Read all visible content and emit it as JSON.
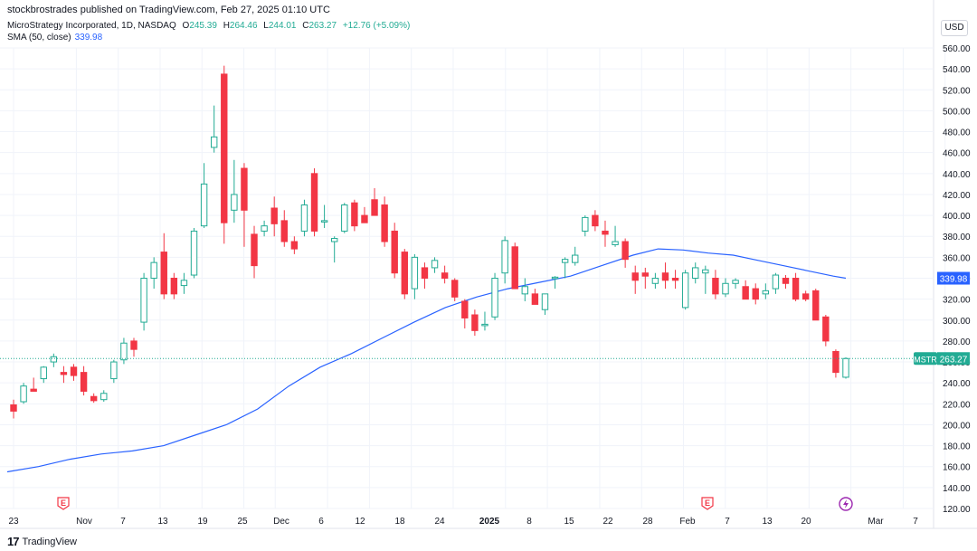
{
  "header": {
    "published_line": "stockbrostrades published on TradingView.com, Feb 27, 2025 01:10 UTC",
    "symbol_line": "MicroStrategy Incorporated, 1D, NASDAQ",
    "ohlc": {
      "o_label": "O",
      "o": "245.39",
      "h_label": "H",
      "h": "264.46",
      "l_label": "L",
      "l": "244.01",
      "c_label": "C",
      "c": "263.27",
      "chg": "+12.76 (+5.09%)"
    },
    "sma_label": "SMA (50, close)",
    "sma_value": "339.98",
    "currency": "USD"
  },
  "footer": {
    "brand": "TradingView"
  },
  "colors": {
    "up": "#22ab94",
    "down": "#f23645",
    "sma": "#2962ff",
    "grid": "#f0f3fa",
    "text": "#131722"
  },
  "chart_data": {
    "type": "candlestick",
    "title": "MicroStrategy Incorporated, 1D, NASDAQ",
    "ylim": [
      120,
      560
    ],
    "y_ticks": [
      120,
      140,
      160,
      180,
      200,
      220,
      240,
      260,
      280,
      300,
      320,
      340,
      360,
      380,
      400,
      420,
      440,
      460,
      480,
      500,
      520,
      540,
      560
    ],
    "x_tick_labels": [
      {
        "label": "23",
        "date": "2024-10-23"
      },
      {
        "label": "Nov",
        "date": "2024-11-01"
      },
      {
        "label": "7",
        "date": "2024-11-07"
      },
      {
        "label": "13",
        "date": "2024-11-13"
      },
      {
        "label": "19",
        "date": "2024-11-19"
      },
      {
        "label": "25",
        "date": "2024-11-25"
      },
      {
        "label": "Dec",
        "date": "2024-12-02"
      },
      {
        "label": "6",
        "date": "2024-12-06"
      },
      {
        "label": "12",
        "date": "2024-12-12"
      },
      {
        "label": "18",
        "date": "2024-12-18"
      },
      {
        "label": "24",
        "date": "2024-12-24"
      },
      {
        "label": "2025",
        "date": "2025-01-02"
      },
      {
        "label": "8",
        "date": "2025-01-08"
      },
      {
        "label": "15",
        "date": "2025-01-15"
      },
      {
        "label": "22",
        "date": "2025-01-22"
      },
      {
        "label": "28",
        "date": "2025-01-28"
      },
      {
        "label": "Feb",
        "date": "2025-02-03"
      },
      {
        "label": "7",
        "date": "2025-02-07"
      },
      {
        "label": "13",
        "date": "2025-02-13"
      },
      {
        "label": "20",
        "date": "2025-02-20"
      },
      {
        "label": "Mar",
        "date": "2025-03-03"
      },
      {
        "label": "7",
        "date": "2025-03-07"
      }
    ],
    "candles": [
      {
        "o": 219,
        "h": 224,
        "l": 206,
        "c": 213
      },
      {
        "o": 222,
        "h": 240,
        "l": 220,
        "c": 237
      },
      {
        "o": 234,
        "h": 245,
        "l": 232,
        "c": 232
      },
      {
        "o": 244,
        "h": 256,
        "l": 240,
        "c": 255
      },
      {
        "o": 260,
        "h": 268,
        "l": 255,
        "c": 265
      },
      {
        "o": 250,
        "h": 256,
        "l": 240,
        "c": 248
      },
      {
        "o": 255,
        "h": 258,
        "l": 242,
        "c": 247
      },
      {
        "o": 250,
        "h": 256,
        "l": 228,
        "c": 232
      },
      {
        "o": 227,
        "h": 230,
        "l": 221,
        "c": 223
      },
      {
        "o": 224,
        "h": 233,
        "l": 222,
        "c": 230
      },
      {
        "o": 244,
        "h": 262,
        "l": 240,
        "c": 260
      },
      {
        "o": 262,
        "h": 283,
        "l": 258,
        "c": 278
      },
      {
        "o": 280,
        "h": 283,
        "l": 265,
        "c": 272
      },
      {
        "o": 298,
        "h": 345,
        "l": 290,
        "c": 340
      },
      {
        "o": 340,
        "h": 360,
        "l": 330,
        "c": 355
      },
      {
        "o": 365,
        "h": 383,
        "l": 320,
        "c": 325
      },
      {
        "o": 340,
        "h": 345,
        "l": 320,
        "c": 325
      },
      {
        "o": 333,
        "h": 345,
        "l": 325,
        "c": 338
      },
      {
        "o": 343,
        "h": 388,
        "l": 340,
        "c": 385
      },
      {
        "o": 390,
        "h": 450,
        "l": 388,
        "c": 430
      },
      {
        "o": 465,
        "h": 505,
        "l": 460,
        "c": 475
      },
      {
        "o": 535,
        "h": 543,
        "l": 373,
        "c": 393
      },
      {
        "o": 405,
        "h": 453,
        "l": 393,
        "c": 420
      },
      {
        "o": 445,
        "h": 450,
        "l": 370,
        "c": 405
      },
      {
        "o": 382,
        "h": 390,
        "l": 340,
        "c": 352
      },
      {
        "o": 385,
        "h": 395,
        "l": 380,
        "c": 390
      },
      {
        "o": 407,
        "h": 418,
        "l": 380,
        "c": 392
      },
      {
        "o": 395,
        "h": 405,
        "l": 370,
        "c": 375
      },
      {
        "o": 375,
        "h": 380,
        "l": 363,
        "c": 368
      },
      {
        "o": 385,
        "h": 415,
        "l": 380,
        "c": 410
      },
      {
        "o": 440,
        "h": 445,
        "l": 380,
        "c": 385
      },
      {
        "o": 395,
        "h": 410,
        "l": 388,
        "c": 395
      },
      {
        "o": 375,
        "h": 380,
        "l": 355,
        "c": 378
      },
      {
        "o": 385,
        "h": 412,
        "l": 383,
        "c": 410
      },
      {
        "o": 412,
        "h": 415,
        "l": 385,
        "c": 390
      },
      {
        "o": 400,
        "h": 408,
        "l": 395,
        "c": 393
      },
      {
        "o": 415,
        "h": 426,
        "l": 400,
        "c": 400
      },
      {
        "o": 410,
        "h": 418,
        "l": 370,
        "c": 375
      },
      {
        "o": 385,
        "h": 393,
        "l": 340,
        "c": 345
      },
      {
        "o": 365,
        "h": 368,
        "l": 320,
        "c": 325
      },
      {
        "o": 330,
        "h": 363,
        "l": 320,
        "c": 360
      },
      {
        "o": 350,
        "h": 355,
        "l": 330,
        "c": 340
      },
      {
        "o": 350,
        "h": 360,
        "l": 345,
        "c": 357
      },
      {
        "o": 345,
        "h": 352,
        "l": 335,
        "c": 340
      },
      {
        "o": 338,
        "h": 340,
        "l": 318,
        "c": 322
      },
      {
        "o": 318,
        "h": 320,
        "l": 292,
        "c": 302
      },
      {
        "o": 305,
        "h": 310,
        "l": 285,
        "c": 290
      },
      {
        "o": 295,
        "h": 308,
        "l": 290,
        "c": 296
      },
      {
        "o": 303,
        "h": 345,
        "l": 300,
        "c": 340
      },
      {
        "o": 345,
        "h": 380,
        "l": 335,
        "c": 376
      },
      {
        "o": 370,
        "h": 374,
        "l": 330,
        "c": 330
      },
      {
        "o": 325,
        "h": 340,
        "l": 318,
        "c": 332
      },
      {
        "o": 325,
        "h": 330,
        "l": 318,
        "c": 315
      },
      {
        "o": 310,
        "h": 325,
        "l": 305,
        "c": 325
      },
      {
        "o": 340,
        "h": 342,
        "l": 330,
        "c": 341
      },
      {
        "o": 355,
        "h": 360,
        "l": 340,
        "c": 358
      },
      {
        "o": 355,
        "h": 370,
        "l": 352,
        "c": 362
      },
      {
        "o": 385,
        "h": 400,
        "l": 380,
        "c": 398
      },
      {
        "o": 400,
        "h": 405,
        "l": 385,
        "c": 390
      },
      {
        "o": 385,
        "h": 395,
        "l": 370,
        "c": 382
      },
      {
        "o": 372,
        "h": 390,
        "l": 370,
        "c": 375
      },
      {
        "o": 375,
        "h": 378,
        "l": 350,
        "c": 358
      },
      {
        "o": 345,
        "h": 352,
        "l": 325,
        "c": 338
      },
      {
        "o": 345,
        "h": 350,
        "l": 330,
        "c": 342
      },
      {
        "o": 335,
        "h": 345,
        "l": 330,
        "c": 340
      },
      {
        "o": 345,
        "h": 355,
        "l": 330,
        "c": 338
      },
      {
        "o": 340,
        "h": 348,
        "l": 330,
        "c": 338
      },
      {
        "o": 312,
        "h": 348,
        "l": 310,
        "c": 345
      },
      {
        "o": 340,
        "h": 355,
        "l": 335,
        "c": 350
      },
      {
        "o": 345,
        "h": 352,
        "l": 325,
        "c": 348
      },
      {
        "o": 340,
        "h": 348,
        "l": 320,
        "c": 325
      },
      {
        "o": 325,
        "h": 340,
        "l": 322,
        "c": 335
      },
      {
        "o": 335,
        "h": 340,
        "l": 330,
        "c": 338
      },
      {
        "o": 332,
        "h": 338,
        "l": 320,
        "c": 320
      },
      {
        "o": 330,
        "h": 335,
        "l": 315,
        "c": 320
      },
      {
        "o": 325,
        "h": 335,
        "l": 320,
        "c": 328
      },
      {
        "o": 330,
        "h": 345,
        "l": 325,
        "c": 343
      },
      {
        "o": 340,
        "h": 343,
        "l": 330,
        "c": 335
      },
      {
        "o": 340,
        "h": 345,
        "l": 318,
        "c": 320
      },
      {
        "o": 325,
        "h": 328,
        "l": 318,
        "c": 320
      },
      {
        "o": 328,
        "h": 330,
        "l": 300,
        "c": 300
      },
      {
        "o": 303,
        "h": 305,
        "l": 275,
        "c": 280
      },
      {
        "o": 270,
        "h": 272,
        "l": 245,
        "c": 250
      },
      {
        "o": 245.39,
        "h": 264.46,
        "l": 244.01,
        "c": 263.27
      }
    ],
    "sma_50": [
      {
        "i": 0,
        "v": 155
      },
      {
        "i": 5,
        "v": 160
      },
      {
        "i": 10,
        "v": 167
      },
      {
        "i": 15,
        "v": 172
      },
      {
        "i": 20,
        "v": 175
      },
      {
        "i": 25,
        "v": 180
      },
      {
        "i": 30,
        "v": 190
      },
      {
        "i": 35,
        "v": 200
      },
      {
        "i": 40,
        "v": 215
      },
      {
        "i": 45,
        "v": 237
      },
      {
        "i": 50,
        "v": 255
      },
      {
        "i": 55,
        "v": 268
      },
      {
        "i": 60,
        "v": 283
      },
      {
        "i": 65,
        "v": 298
      },
      {
        "i": 70,
        "v": 312
      },
      {
        "i": 75,
        "v": 322
      },
      {
        "i": 80,
        "v": 330
      },
      {
        "i": 85,
        "v": 336
      },
      {
        "i": 90,
        "v": 342
      },
      {
        "i": 95,
        "v": 352
      },
      {
        "i": 100,
        "v": 362
      },
      {
        "i": 104,
        "v": 368
      },
      {
        "i": 108,
        "v": 367
      },
      {
        "i": 112,
        "v": 364
      },
      {
        "i": 116,
        "v": 362
      },
      {
        "i": 120,
        "v": 357
      },
      {
        "i": 124,
        "v": 352
      },
      {
        "i": 128,
        "v": 347
      },
      {
        "i": 132,
        "v": 342
      },
      {
        "i": 134,
        "v": 339.98
      }
    ],
    "last_price_label": {
      "symbol": "MSTR",
      "value": "263.27"
    },
    "sma_price_label": "339.98",
    "event_markers": [
      {
        "symbol": "E",
        "position": "near Oct 30"
      },
      {
        "symbol": "E",
        "position": "near Feb 5"
      }
    ]
  }
}
